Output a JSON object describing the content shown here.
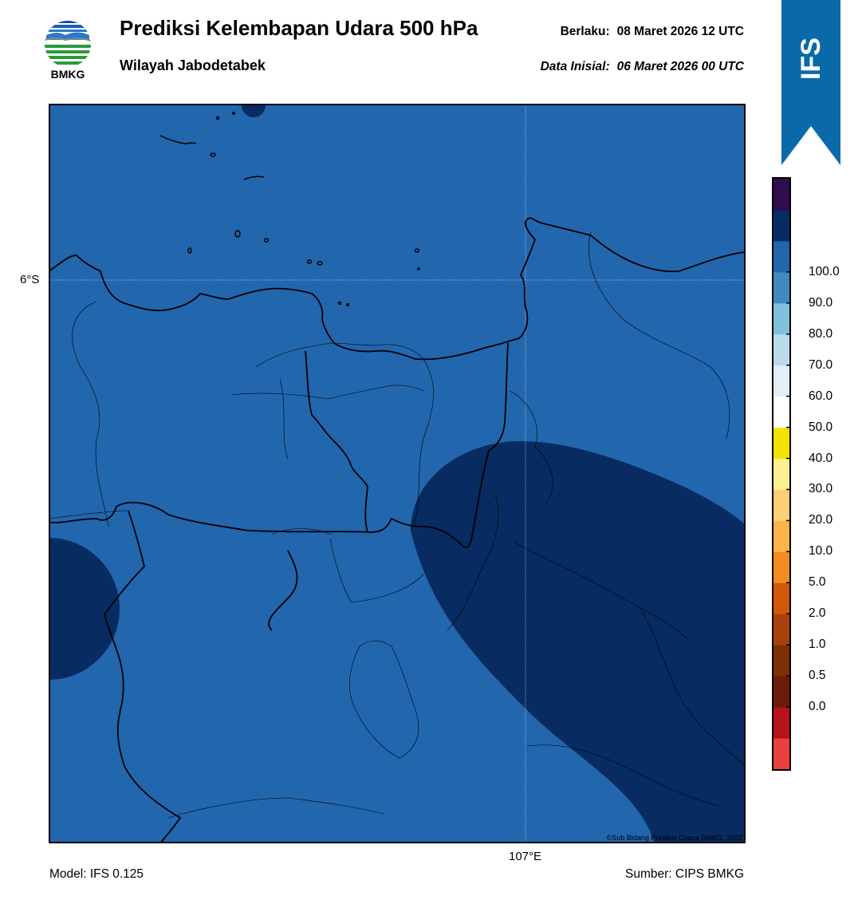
{
  "header": {
    "title": "Prediksi Kelembapan Udara 500 hPa",
    "region": "Wilayah Jabodetabek",
    "valid_label": "Berlaku:",
    "valid_value": "08 Maret 2026 12 UTC",
    "initial_label": "Data Inisial:",
    "initial_value": "06 Maret 2026 00 UTC"
  },
  "logo": {
    "text": "BMKG",
    "icon": "bmkg-logo"
  },
  "badge": {
    "text": "IFS",
    "color": "#0a6aa9"
  },
  "map": {
    "lat_label": "6°S",
    "lon_label": "107°E",
    "copyright": "©Sub Bidang Prediksi Cuaca BMKG, 2022",
    "field_colors": {
      "level_80_90": "#2266ae",
      "level_90_100": "#082c61"
    }
  },
  "colorbar": {
    "ticks": [
      "0.0",
      "0.5",
      "1.0",
      "2.0",
      "5.0",
      "10.0",
      "20.0",
      "30.0",
      "40.0",
      "50.0",
      "60.0",
      "70.0",
      "80.0",
      "90.0",
      "100.0"
    ],
    "colors": [
      "#e8403c",
      "#b6121a",
      "#6e1a0c",
      "#7d3104",
      "#a8410b",
      "#d2590b",
      "#f18c22",
      "#fbb44a",
      "#fccf76",
      "#fcf092",
      "#f2e400",
      "#ffffff",
      "#e3eef7",
      "#bcdbea",
      "#81c0dc",
      "#3e8bbf",
      "#2266ae",
      "#082c61",
      "#2f0b4f"
    ]
  },
  "footer": {
    "model": "Model: IFS 0.125",
    "source": "Sumber: CIPS BMKG"
  }
}
